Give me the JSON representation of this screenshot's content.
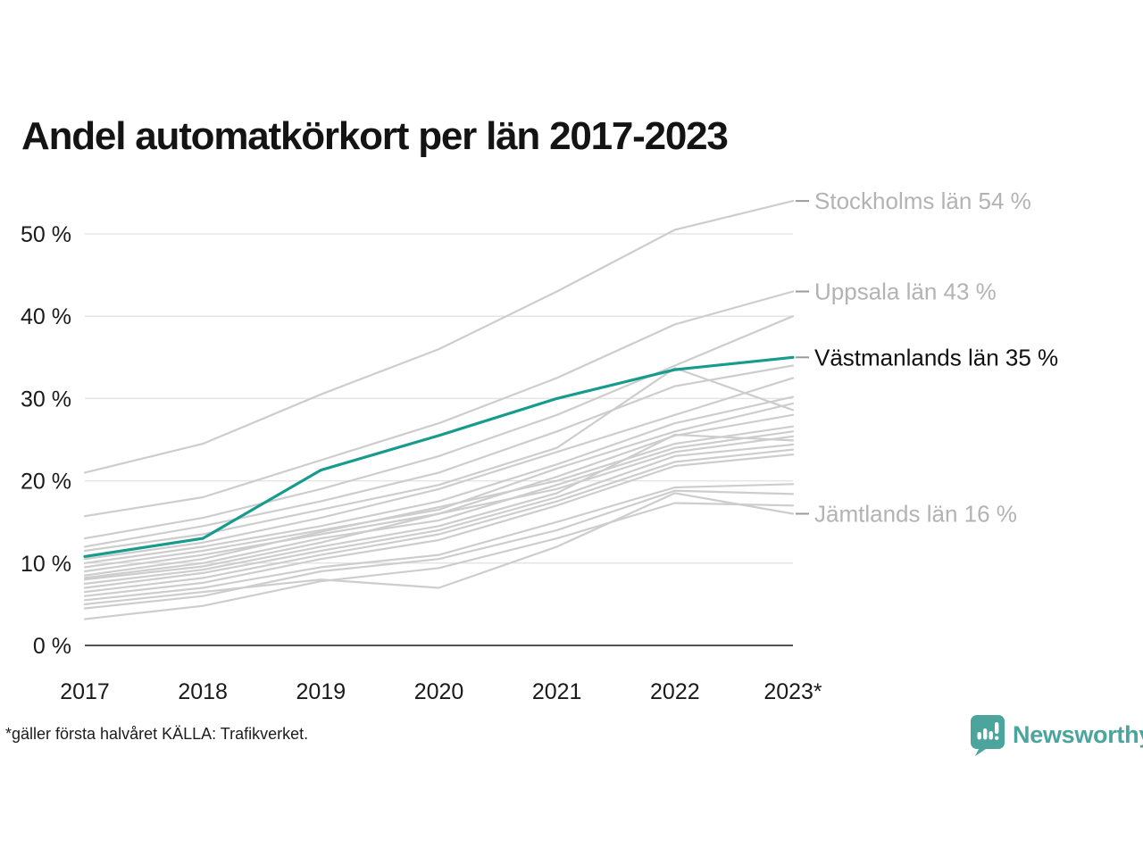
{
  "page": {
    "title": "Andel automatkörkort per län 2017-2023",
    "footnote": "*gäller första halvåret KÄLLA: Trafikverket.",
    "logo_text": "Newsworthy"
  },
  "colors": {
    "highlight_line": "#169b8c",
    "muted_line": "#cdcdcd",
    "grid_line": "#e5e5e5",
    "axis_line": "#1a1a1a",
    "muted_label": "#b3b3b3",
    "dark_label": "#111111",
    "leader_line": "#9a9a9a",
    "brand_teal": "#4ba59c"
  },
  "chart_data": {
    "type": "line",
    "title": "Andel automatkörkort per län 2017-2023",
    "xlabel": "",
    "ylabel": "",
    "x_tick_labels": [
      "2017",
      "2018",
      "2019",
      "2020",
      "2021",
      "2022",
      "2023*"
    ],
    "y_ticks": [
      0,
      10,
      20,
      30,
      40,
      50
    ],
    "y_tick_labels": [
      "0 %",
      "10 %",
      "20 %",
      "30 %",
      "40 %",
      "50 %"
    ],
    "ylim": [
      0,
      57
    ],
    "grid": "horizontal",
    "legend_position": "right-annotations",
    "series": [
      {
        "name": "Stockholms län",
        "label": "Stockholms län 54 %",
        "label_style": "muted",
        "highlight": false,
        "values": [
          21,
          24.5,
          30.5,
          36,
          43,
          50.5,
          54
        ]
      },
      {
        "name": "Uppsala län",
        "label": "Uppsala län 43 %",
        "label_style": "muted",
        "highlight": false,
        "values": [
          15.7,
          18,
          22.5,
          27,
          32.5,
          39,
          43
        ]
      },
      {
        "name": "",
        "label": "",
        "label_style": "",
        "highlight": false,
        "values": [
          13,
          15.5,
          19,
          23,
          28,
          34,
          40
        ]
      },
      {
        "name": "",
        "label": "",
        "label_style": "",
        "highlight": false,
        "values": [
          12,
          14.5,
          17.5,
          21,
          26,
          31.5,
          34
        ]
      },
      {
        "name": "",
        "label": "",
        "label_style": "",
        "highlight": false,
        "values": [
          11.5,
          13.5,
          16.5,
          19.5,
          24,
          33.7,
          28.6
        ]
      },
      {
        "name": "",
        "label": "",
        "label_style": "",
        "highlight": false,
        "values": [
          10.5,
          12.5,
          15.5,
          19,
          23.5,
          28,
          32.5
        ]
      },
      {
        "name": "",
        "label": "",
        "label_style": "",
        "highlight": false,
        "values": [
          10,
          12,
          14.5,
          17.5,
          22,
          27,
          30.2
        ]
      },
      {
        "name": "",
        "label": "",
        "label_style": "",
        "highlight": false,
        "values": [
          9.5,
          11.5,
          14,
          16.5,
          21.5,
          26,
          29.4
        ]
      },
      {
        "name": "",
        "label": "",
        "label_style": "",
        "highlight": false,
        "values": [
          9,
          11,
          13.5,
          16,
          20.5,
          25.5,
          28
        ]
      },
      {
        "name": "",
        "label": "",
        "label_style": "",
        "highlight": false,
        "values": [
          8.5,
          10.5,
          13.8,
          16.8,
          20,
          24.5,
          26.6
        ]
      },
      {
        "name": "",
        "label": "",
        "label_style": "",
        "highlight": false,
        "values": [
          8.2,
          10,
          13,
          15.2,
          19.5,
          24,
          26
        ]
      },
      {
        "name": "",
        "label": "",
        "label_style": "",
        "highlight": false,
        "values": [
          8,
          9.6,
          12.5,
          16,
          19,
          23.5,
          25.4
        ]
      },
      {
        "name": "",
        "label": "",
        "label_style": "",
        "highlight": false,
        "values": [
          7.5,
          9.2,
          12,
          14.5,
          18.5,
          25.6,
          24.9
        ]
      },
      {
        "name": "",
        "label": "",
        "label_style": "",
        "highlight": false,
        "values": [
          7,
          8.8,
          11.5,
          14,
          18,
          23,
          24.4
        ]
      },
      {
        "name": "",
        "label": "",
        "label_style": "",
        "highlight": false,
        "values": [
          6.5,
          8.2,
          11,
          13.5,
          17.5,
          22.3,
          23.8
        ]
      },
      {
        "name": "",
        "label": "",
        "label_style": "",
        "highlight": false,
        "values": [
          6,
          7.6,
          10.5,
          12.8,
          17,
          21.8,
          23.2
        ]
      },
      {
        "name": "",
        "label": "",
        "label_style": "",
        "highlight": false,
        "values": [
          5.5,
          7,
          9.5,
          11,
          15,
          19.2,
          19.6
        ]
      },
      {
        "name": "",
        "label": "",
        "label_style": "",
        "highlight": false,
        "values": [
          4.5,
          6,
          9,
          10.5,
          14,
          18.8,
          18.4
        ]
      },
      {
        "name": "Jämtlands län",
        "label": "Jämtlands län 16 %",
        "label_style": "muted",
        "highlight": false,
        "values": [
          5,
          6.5,
          8,
          7,
          12,
          18.5,
          16
        ]
      },
      {
        "name": "",
        "label": "",
        "label_style": "",
        "highlight": false,
        "values": [
          3.2,
          4.8,
          7.8,
          9.4,
          13,
          17.3,
          17
        ]
      },
      {
        "name": "Västmanlands län",
        "label": "Västmanlands län 35 %",
        "label_style": "dark",
        "highlight": true,
        "values": [
          10.8,
          13,
          21.3,
          25.5,
          30,
          33.5,
          35
        ]
      }
    ]
  }
}
